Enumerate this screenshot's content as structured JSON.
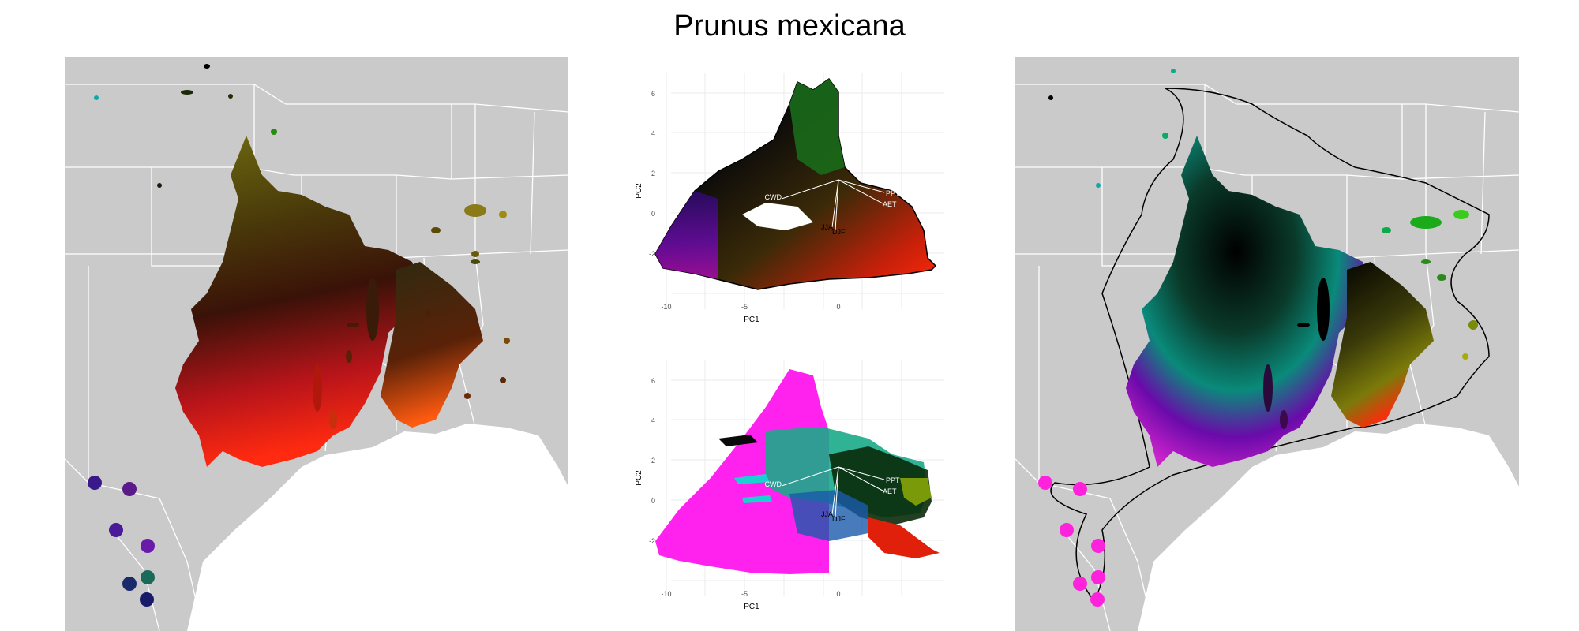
{
  "title": "Prunus mexicana",
  "colors": {
    "land": "#cacaca",
    "borders": "#ffffff",
    "grid": "#ebebeb",
    "hull": "#000000",
    "loading_line": "#ffffff"
  },
  "pca_plots": [
    {
      "id": "pca-top",
      "x_axis_label": "PC1",
      "y_axis_label": "PC2",
      "x_ticks": [
        "-10",
        "-5",
        "0"
      ],
      "y_ticks": [
        "6",
        "4",
        "2",
        "0",
        "-2"
      ],
      "loading_labels": [
        "CWD",
        "JJA",
        "DJF",
        "PPT",
        "AET"
      ]
    },
    {
      "id": "pca-bottom",
      "x_axis_label": "PC1",
      "y_axis_label": "PC2",
      "x_ticks": [
        "-10",
        "-5",
        "0"
      ],
      "y_ticks": [
        "6",
        "4",
        "2",
        "0",
        "-2"
      ],
      "loading_labels": [
        "CWD",
        "JJA",
        "DJF",
        "PPT",
        "AET"
      ]
    }
  ]
}
